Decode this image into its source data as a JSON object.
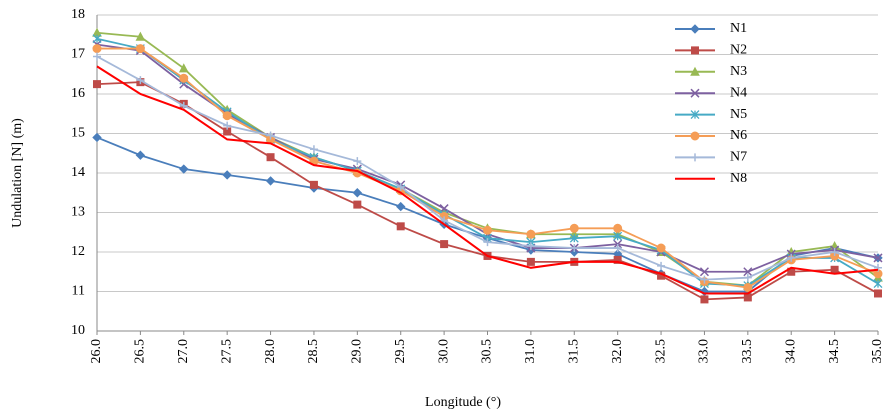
{
  "chart_data": {
    "type": "line",
    "x_label": "Longitude (°)",
    "y_label": "Undulation [N] (m)",
    "x": [
      26.0,
      26.5,
      27.0,
      27.5,
      28.0,
      28.5,
      29.0,
      29.5,
      30.0,
      30.5,
      31.0,
      31.5,
      32.0,
      32.5,
      33.0,
      33.5,
      34.0,
      34.5,
      35.0
    ],
    "xlim": [
      26,
      35
    ],
    "xticks": [
      {
        "value": 26,
        "label": "26.0"
      },
      26.5,
      {
        "value": 27,
        "label": "27.0"
      },
      27.5,
      {
        "value": 28,
        "label": "28.0"
      },
      28.5,
      {
        "value": 29,
        "label": "29.0"
      },
      29.5,
      {
        "value": 30,
        "label": "30.0"
      },
      30.5,
      {
        "value": 31,
        "label": "31.0"
      },
      31.5,
      {
        "value": 32,
        "label": "32.0"
      },
      32.5,
      {
        "value": 33,
        "label": "33.0"
      },
      33.5,
      {
        "value": 34,
        "label": "34.0"
      },
      34.5,
      {
        "value": 35,
        "label": "35.0"
      }
    ],
    "ylim": [
      10,
      18
    ],
    "yticks": [
      10,
      11,
      12,
      13,
      14,
      15,
      16,
      17,
      18
    ],
    "grid": true,
    "legend": "top-right",
    "series": [
      {
        "name": "N1",
        "color": "#4a7ebb",
        "marker": "diamond",
        "values": [
          14.9,
          14.45,
          14.1,
          13.95,
          13.8,
          13.62,
          13.5,
          13.15,
          12.7,
          12.35,
          12.05,
          12.0,
          11.95,
          11.45,
          11.0,
          11.0,
          11.9,
          12.1,
          11.85
        ]
      },
      {
        "name": "N2",
        "color": "#be4b48",
        "marker": "square",
        "values": [
          16.25,
          16.3,
          15.75,
          15.05,
          14.4,
          13.7,
          13.2,
          12.65,
          12.2,
          11.9,
          11.75,
          11.75,
          11.8,
          11.4,
          10.8,
          10.85,
          11.5,
          11.55,
          10.95
        ]
      },
      {
        "name": "N3",
        "color": "#98b954",
        "marker": "triangle",
        "values": [
          17.55,
          17.45,
          16.65,
          15.6,
          14.9,
          14.4,
          14.05,
          13.6,
          13.0,
          12.6,
          12.45,
          12.45,
          12.45,
          12.0,
          11.25,
          11.15,
          12.0,
          12.15,
          11.35
        ]
      },
      {
        "name": "N4",
        "color": "#7d60a0",
        "marker": "x",
        "values": [
          17.25,
          17.1,
          16.25,
          15.5,
          14.9,
          14.35,
          14.1,
          13.7,
          13.1,
          12.45,
          12.1,
          12.1,
          12.2,
          12.0,
          11.5,
          11.5,
          11.95,
          12.05,
          11.85
        ]
      },
      {
        "name": "N5",
        "color": "#46aac5",
        "marker": "asterisk",
        "values": [
          17.4,
          17.15,
          16.35,
          15.55,
          14.85,
          14.4,
          14.05,
          13.6,
          12.95,
          12.35,
          12.25,
          12.35,
          12.4,
          12.05,
          11.2,
          11.15,
          11.85,
          11.85,
          11.2
        ]
      },
      {
        "name": "N6",
        "color": "#f59d56",
        "marker": "circle",
        "values": [
          17.15,
          17.15,
          16.4,
          15.45,
          14.85,
          14.3,
          14.0,
          13.55,
          12.9,
          12.55,
          12.45,
          12.6,
          12.6,
          12.1,
          11.25,
          11.1,
          11.8,
          11.9,
          11.45
        ]
      },
      {
        "name": "N7",
        "color": "#a5b9d9",
        "marker": "plus",
        "values": [
          16.95,
          16.35,
          15.7,
          15.2,
          14.95,
          14.6,
          14.3,
          13.65,
          12.8,
          12.25,
          12.15,
          12.1,
          12.1,
          11.65,
          11.3,
          11.35,
          11.85,
          12.0,
          11.6
        ]
      },
      {
        "name": "N8",
        "color": "#ff0000",
        "marker": "none",
        "values": [
          16.7,
          16.0,
          15.6,
          14.85,
          14.75,
          14.2,
          14.05,
          13.5,
          12.7,
          11.9,
          11.6,
          11.75,
          11.75,
          11.45,
          10.95,
          10.95,
          11.6,
          11.45,
          11.55
        ]
      }
    ]
  }
}
